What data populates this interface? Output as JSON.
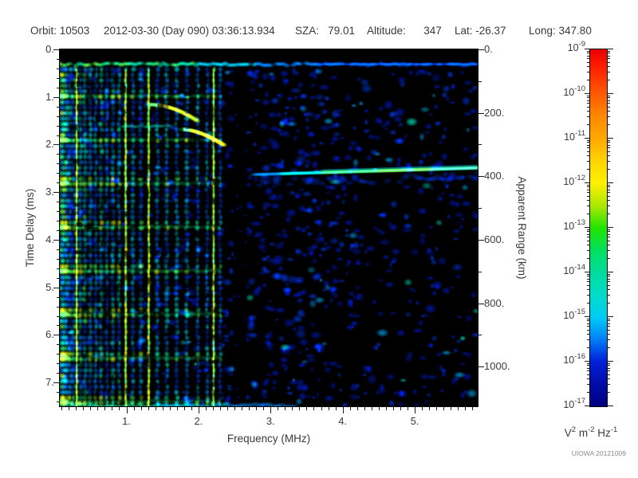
{
  "header": {
    "orbit": "Orbit: 10503",
    "datetime": "2012-03-30 (Day 090) 03:36:13.934",
    "sza": "SZA:   79.01",
    "altitude": "Altitude:      347",
    "lat": "Lat: -26.37",
    "long": "Long: 347.80"
  },
  "footer": {
    "credit": "UIOWA 20121009"
  },
  "chart_data": {
    "type": "heatmap",
    "description": "Radar sounder ionogram: echo spectral density vs frequency and time delay",
    "xlabel": "Frequency (MHz)",
    "ylabel_left": "Time Delay (ms)",
    "ylabel_right": "Apparent Range (km)",
    "x_range": [
      0.076,
      5.874
    ],
    "y_range_ms": [
      0,
      7.5
    ],
    "x_major_ticks": [
      1,
      2,
      3,
      4,
      5
    ],
    "x_tick_labels": [
      "1.",
      "2.",
      "3.",
      "4.",
      "5."
    ],
    "x_minor_step": 0.1,
    "y_major_ticks": [
      0,
      1,
      2,
      3,
      4,
      5,
      6,
      7
    ],
    "y_tick_labels": [
      "0.",
      "1.",
      "2.",
      "3.",
      "4.",
      "5.",
      "6.",
      "7."
    ],
    "y_minor_step": 0.2,
    "right_major_ticks_km": [
      0,
      200,
      400,
      600,
      800,
      1000
    ],
    "right_tick_labels": [
      "0.",
      "200.",
      "400.",
      "600.",
      "800.",
      "1000."
    ],
    "right_minor_step_km": 100,
    "km_per_ms": 150,
    "colorbar": {
      "exponents": [
        -9,
        -10,
        -11,
        -12,
        -13,
        -14,
        -15,
        -16,
        -17
      ],
      "unit_segments": [
        [
          "V",
          "2"
        ],
        [
          " m",
          "-2"
        ],
        [
          " Hz",
          "-1"
        ]
      ],
      "gradient": [
        [
          0,
          "#e80000"
        ],
        [
          0.05,
          "#ff1e00"
        ],
        [
          0.125,
          "#ff5a00"
        ],
        [
          0.1875,
          "#ff8800"
        ],
        [
          0.25,
          "#ffa800"
        ],
        [
          0.3125,
          "#ffd400"
        ],
        [
          0.375,
          "#fff000"
        ],
        [
          0.44,
          "#a8e800"
        ],
        [
          0.5,
          "#22e400"
        ],
        [
          0.5625,
          "#00e060"
        ],
        [
          0.625,
          "#00dc9c"
        ],
        [
          0.6875,
          "#00dcc8"
        ],
        [
          0.75,
          "#00ccf4"
        ],
        [
          0.8,
          "#0090f8"
        ],
        [
          0.84,
          "#0054ec"
        ],
        [
          0.875,
          "#0020d8"
        ],
        [
          0.9375,
          "#000ca8"
        ],
        [
          1,
          "#000080"
        ]
      ]
    },
    "spectrogram": {
      "seed": 7,
      "noise": {
        "count": 1500,
        "t_min": 0.45,
        "colors": [
          [
            "#0018b4",
            0.7
          ],
          [
            "#0038e8",
            0.22
          ],
          [
            "#00a0e8",
            0.06
          ],
          [
            "#00e0c0",
            0.02
          ]
        ],
        "density": {
          "left": 0.5,
          "mid": 0.95,
          "right": 0.55,
          "dark": 0.08
        },
        "mid_range": [
          2.3,
          4.25
        ]
      },
      "top_band": {
        "t0": 0.22,
        "t1": 0.41,
        "thin_line_f": 3.6
      },
      "stripes": {
        "t_start": 0.42,
        "cell_ms": 0.115,
        "list": [
          [
            0.095,
            6,
            0.95,
            0
          ],
          [
            0.135,
            5,
            0.9,
            0
          ],
          [
            0.18,
            4,
            0.7,
            0
          ],
          [
            0.225,
            3,
            0.6,
            0
          ],
          [
            0.27,
            3,
            0.55,
            0
          ],
          [
            0.31,
            2,
            1,
            1
          ],
          [
            0.36,
            4,
            0.7,
            0
          ],
          [
            0.425,
            4,
            0.75,
            0
          ],
          [
            0.5,
            4,
            0.6,
            0
          ],
          [
            0.575,
            3,
            0.55,
            0
          ],
          [
            0.65,
            4,
            0.7,
            0
          ],
          [
            0.73,
            3,
            0.5,
            0
          ],
          [
            0.81,
            4,
            0.65,
            0
          ],
          [
            0.9,
            3,
            0.75,
            0
          ],
          [
            0.99,
            2,
            0.95,
            1
          ],
          [
            1.09,
            4,
            0.6,
            0
          ],
          [
            1.2,
            4,
            0.55,
            0
          ],
          [
            1.31,
            2,
            0.9,
            1
          ],
          [
            1.43,
            4,
            0.6,
            0
          ],
          [
            1.56,
            4,
            0.65,
            0
          ],
          [
            1.7,
            4,
            0.55,
            0
          ],
          [
            1.84,
            4,
            0.6,
            0
          ],
          [
            1.99,
            3,
            0.55,
            0
          ],
          [
            2.12,
            3,
            0.5,
            0
          ],
          [
            2.21,
            2,
            0.85,
            1
          ],
          [
            2.3,
            3,
            0.45,
            0
          ]
        ]
      },
      "cyclotron": {
        "times": [
          0.98,
          1.9,
          2.81,
          3.73,
          4.65,
          5.56,
          6.48,
          7.4
        ],
        "band_f_max": 2.32,
        "band_alpha": 0.25,
        "blob_color": "#55e055"
      },
      "cusps": [
        {
          "f0": 1.32,
          "f1": 1.98,
          "t0": 1.16,
          "dt": 0.34,
          "pow": 2.0
        },
        {
          "f0": 1.78,
          "f1": 2.35,
          "t0": 1.68,
          "dt": 0.33,
          "pow": 1.7
        }
      ],
      "streaks": [
        {
          "f0": 0.95,
          "f1": 1.6,
          "t": 1.62,
          "color": "#00d8c0"
        }
      ],
      "ground_trace": {
        "f0": 2.78,
        "f1": 5.87,
        "t0": 2.63,
        "t1": 2.49
      },
      "dark_band": {
        "f0": 2.49,
        "f1": 2.66,
        "alpha": 0.85
      },
      "bottom_band": {
        "t0": 7.4,
        "t1": 7.5,
        "f_max": 3.4
      },
      "mottling": {
        "count": 420,
        "f0": 0.18,
        "f1": 2.32
      }
    }
  }
}
